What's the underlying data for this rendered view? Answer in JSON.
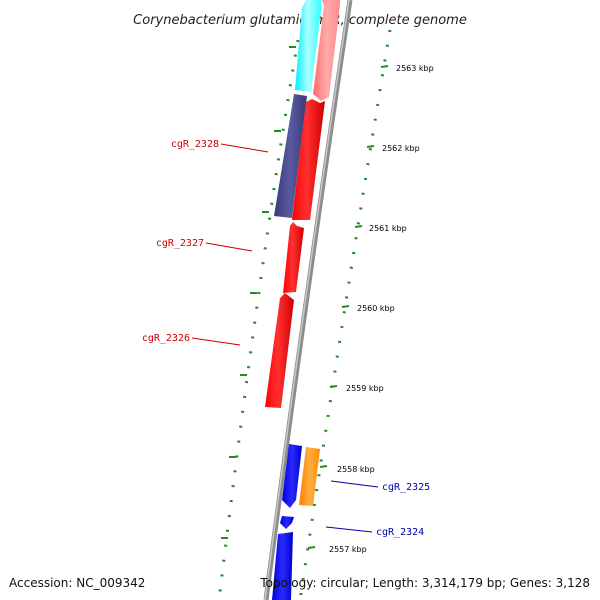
{
  "title": "Corynebacterium glutamicum R, complete genome",
  "footer": {
    "accession": "Accession: NC_009342",
    "topology": "Topology: circular; Length: 3,314,179 bp; Genes: 3,128"
  },
  "ruler": {
    "unit": "kbp",
    "ticks": [
      {
        "kbp": 2563,
        "label": "2563 kbp"
      },
      {
        "kbp": 2562,
        "label": "2562 kbp"
      },
      {
        "kbp": 2561,
        "label": "2561 kbp"
      },
      {
        "kbp": 2560,
        "label": "2560 kbp"
      },
      {
        "kbp": 2559,
        "label": "2559 kbp"
      },
      {
        "kbp": 2558,
        "label": "2558 kbp"
      },
      {
        "kbp": 2557,
        "label": "2557 kbp"
      }
    ]
  },
  "gene_labels": [
    {
      "id": "cgR_2328",
      "color": "#cc0000"
    },
    {
      "id": "cgR_2327",
      "color": "#cc0000"
    },
    {
      "id": "cgR_2326",
      "color": "#cc0000"
    },
    {
      "id": "cgR_2325",
      "color": "#0000aa"
    },
    {
      "id": "cgR_2324",
      "color": "#0000aa"
    }
  ],
  "feature_colors": {
    "backbone": "#8c8c8c",
    "red_cds": "#ff0000",
    "cyan_feature": "#33ffff",
    "purple_feature": "#4a4a8c",
    "orange_feature": "#ff8c00",
    "blue_cds": "#0000ff",
    "dots": "#228b22",
    "tick": "#228b22"
  }
}
